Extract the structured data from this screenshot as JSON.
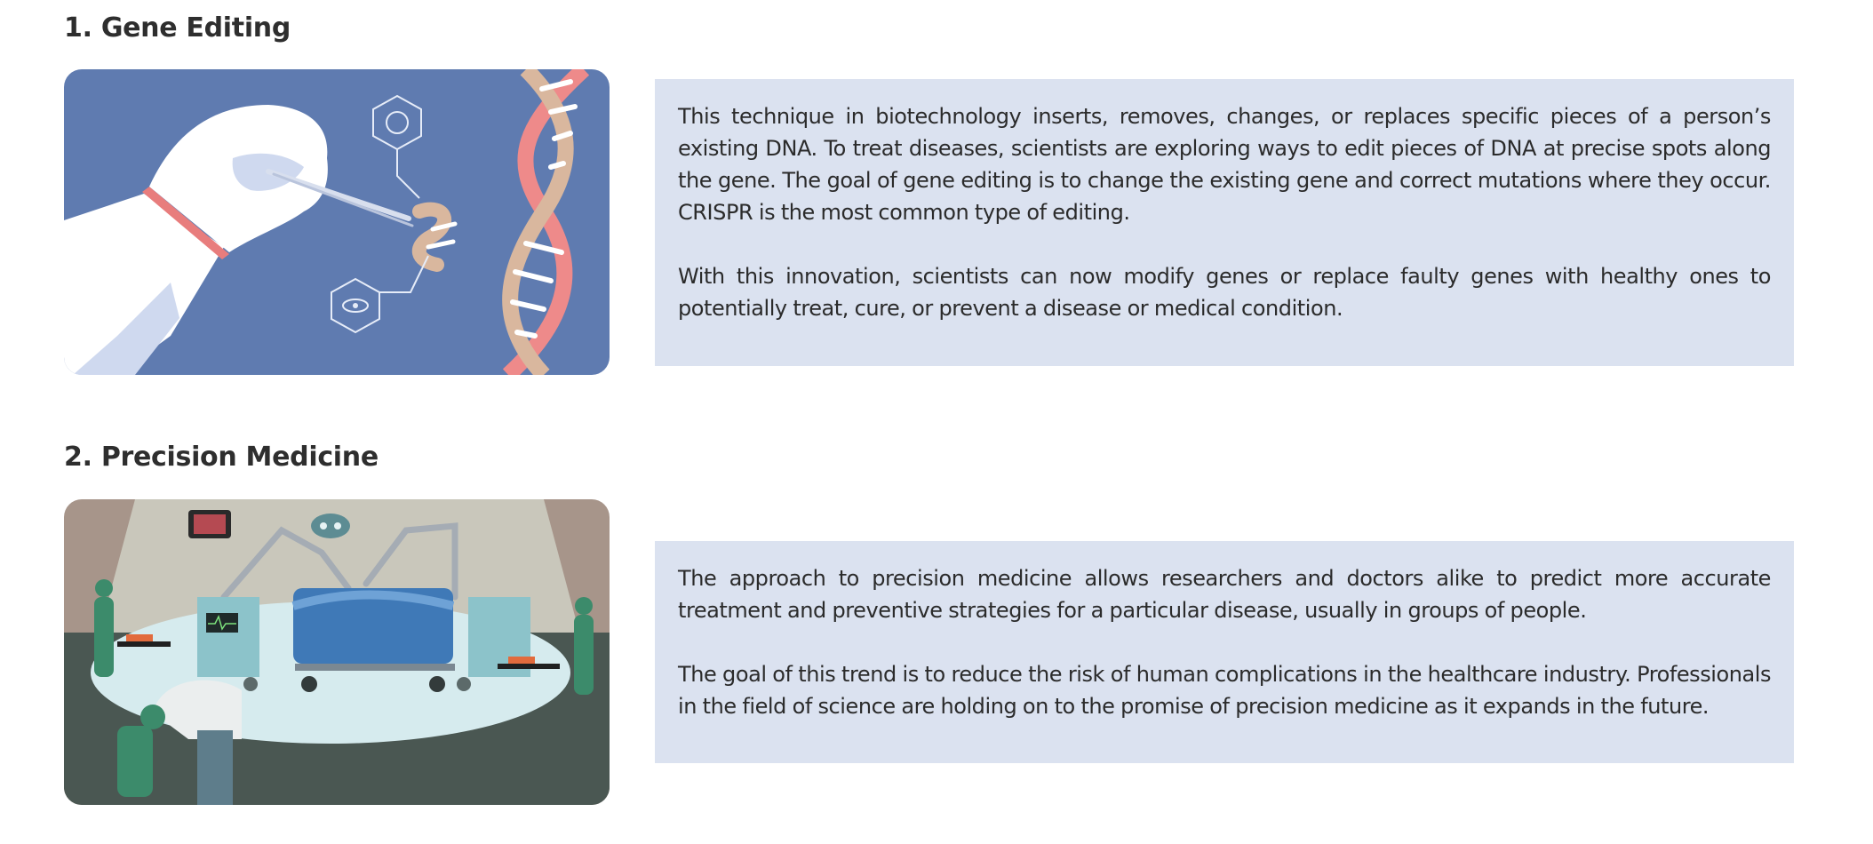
{
  "sections": [
    {
      "title": "1. Gene Editing",
      "paragraphs": [
        "This technique in biotechnology inserts, removes, changes, or replaces specific pieces of a person’s existing DNA. To treat diseases, scientists are exploring ways to edit pieces of DNA at precise spots along the gene. The goal of gene editing is to change the existing gene and correct mutations where they occur. CRISPR is the most common type of editing.",
        "With this innovation, scientists can now modify genes or replace faulty genes with healthy ones to potentially treat, cure, or prevent a disease or medical condition."
      ],
      "colors": {
        "illustration_bg": "#5f7bb0",
        "text_bg": "#dbe2f0"
      }
    },
    {
      "title": "2. Precision Medicine",
      "paragraphs": [
        "The approach to precision medicine allows researchers and doctors alike to predict more accurate treatment and preventive strategies for a particular disease, usually in groups of people.",
        "The goal of this trend is to reduce the risk of human complications in the healthcare industry. Professionals in the field of science are holding on to the promise of precision medicine as it expands in the future."
      ],
      "colors": {
        "illustration_bg": "#4a5752",
        "text_bg": "#dbe2f0"
      }
    }
  ]
}
